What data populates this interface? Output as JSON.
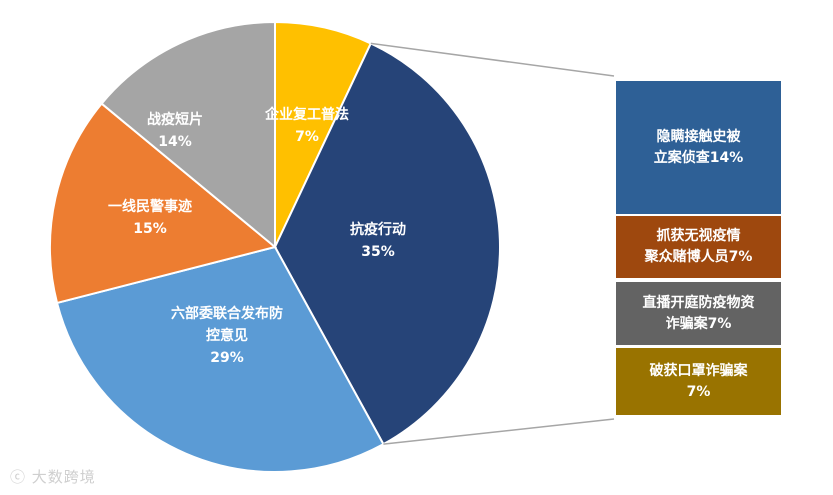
{
  "chart_data": [
    {
      "type": "pie",
      "slices": [
        {
          "label": "企业复工普法",
          "value": 7,
          "value_text": "7%",
          "color": "#FFC000"
        },
        {
          "label": "抗疫行动",
          "value": 35,
          "value_text": "35%",
          "color": "#264478"
        },
        {
          "label": "六部委联合发布防控意见",
          "value": 29,
          "value_text": "29%",
          "color": "#5B9BD5"
        },
        {
          "label": "一线民警事迹",
          "value": 15,
          "value_text": "15%",
          "color": "#ED7D31"
        },
        {
          "label": "战疫短片",
          "value": 14,
          "value_text": "14%",
          "color": "#A5A5A5"
        }
      ]
    },
    {
      "type": "bar",
      "orientation": "stacked-breakdown",
      "parent": "抗疫行动",
      "segments": [
        {
          "label": "隐瞒接触史被立案侦查",
          "value": 14,
          "value_text": "14%",
          "color": "#2E6096"
        },
        {
          "label": "抓获无视疫情聚众赌博人员",
          "value": 7,
          "value_text": "7%",
          "color": "#9E480E"
        },
        {
          "label": "直播开庭防疫物资诈骗案",
          "value": 7,
          "value_text": "7%",
          "color": "#636363"
        },
        {
          "label": "破获口罩诈骗案",
          "value": 7,
          "value_text": "7%",
          "color": "#997300"
        }
      ]
    }
  ],
  "pie_labels": [
    {
      "line1": "企业复工普法",
      "line2": "7%"
    },
    {
      "line1": "抗疫行动",
      "line2": "35%"
    },
    {
      "line1": "六部委联合发布防",
      "line2": "控意见",
      "line3": "29%"
    },
    {
      "line1": "一线民警事迹",
      "line2": "15%"
    },
    {
      "line1": "战疫短片",
      "line2": "14%"
    }
  ],
  "breakdown_labels": [
    {
      "line1": "隐瞒接触史被",
      "line2": "立案侦查14%"
    },
    {
      "line1": "抓获无视疫情",
      "line2": "聚众赌博人员7%"
    },
    {
      "line1": "直播开庭防疫物资",
      "line2": "诈骗案7%"
    },
    {
      "line1": "破获口罩诈骗案",
      "line2": "7%"
    }
  ],
  "watermark": "大数跨境"
}
